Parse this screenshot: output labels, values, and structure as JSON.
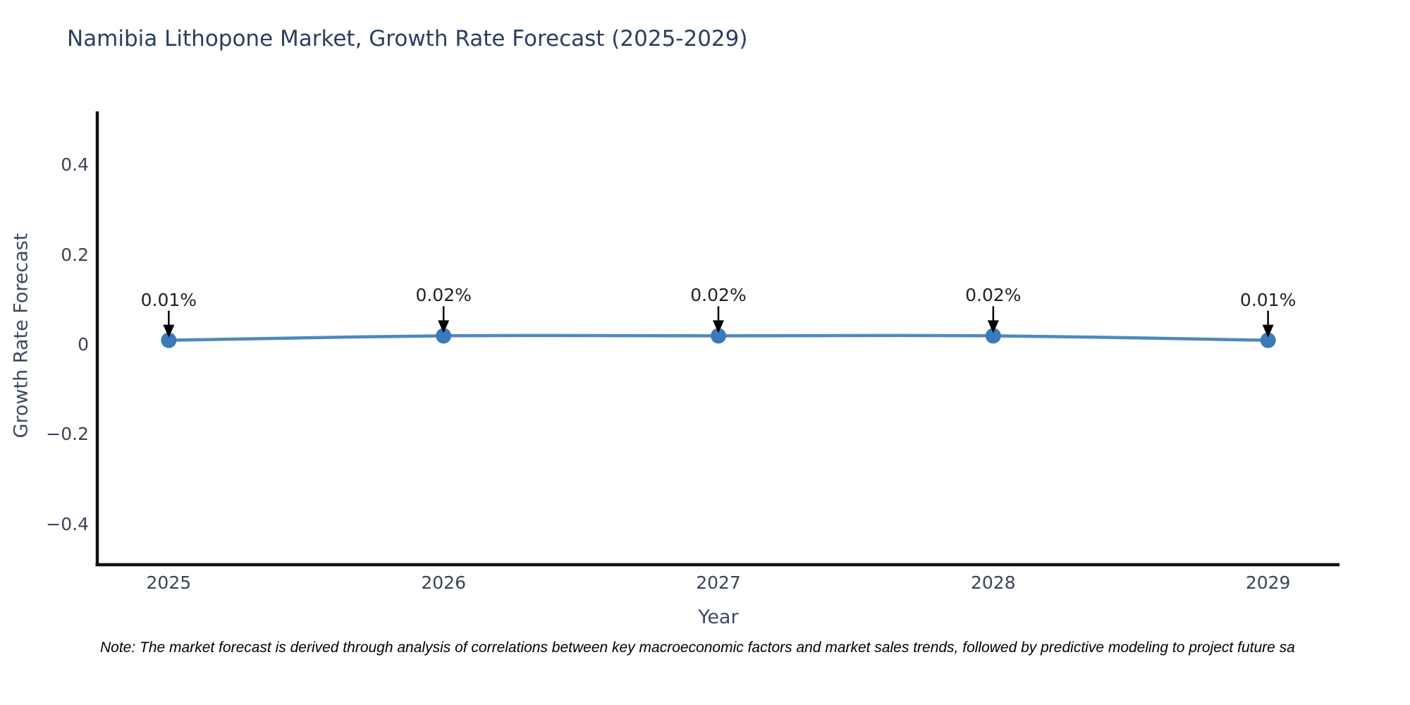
{
  "title": "Namibia Lithopone Market, Growth Rate Forecast (2025-2029)",
  "note": "Note: The market forecast is derived through analysis of correlations between key macroeconomic factors and market sales trends, followed by predictive modeling to project future sa",
  "chart_data": {
    "type": "line",
    "title": "Namibia Lithopone Market, Growth Rate Forecast (2025-2029)",
    "xlabel": "Year",
    "ylabel": "Growth Rate Forecast",
    "x": [
      2025,
      2026,
      2027,
      2028,
      2029
    ],
    "series": [
      {
        "name": "Growth Rate Forecast",
        "values": [
          0.01,
          0.02,
          0.02,
          0.02,
          0.01
        ]
      }
    ],
    "point_labels": [
      "0.01%",
      "0.02%",
      "0.02%",
      "0.02%",
      "0.01%"
    ],
    "x_tick_labels": [
      "2025",
      "2026",
      "2027",
      "2028",
      "2029"
    ],
    "y_tick_labels": [
      "0.4",
      "0.2",
      "0",
      "−0.2",
      "−0.4"
    ],
    "y_tick_values": [
      0.4,
      0.2,
      0,
      -0.2,
      -0.4
    ],
    "xlim": [
      2024.74,
      2029.26
    ],
    "ylim": [
      -0.49,
      0.52
    ],
    "grid": false,
    "legend": false,
    "line_color": "#4e89bf",
    "marker_color": "#3a7ab8",
    "axis_color": "#111111",
    "arrow_color": "#000000"
  }
}
